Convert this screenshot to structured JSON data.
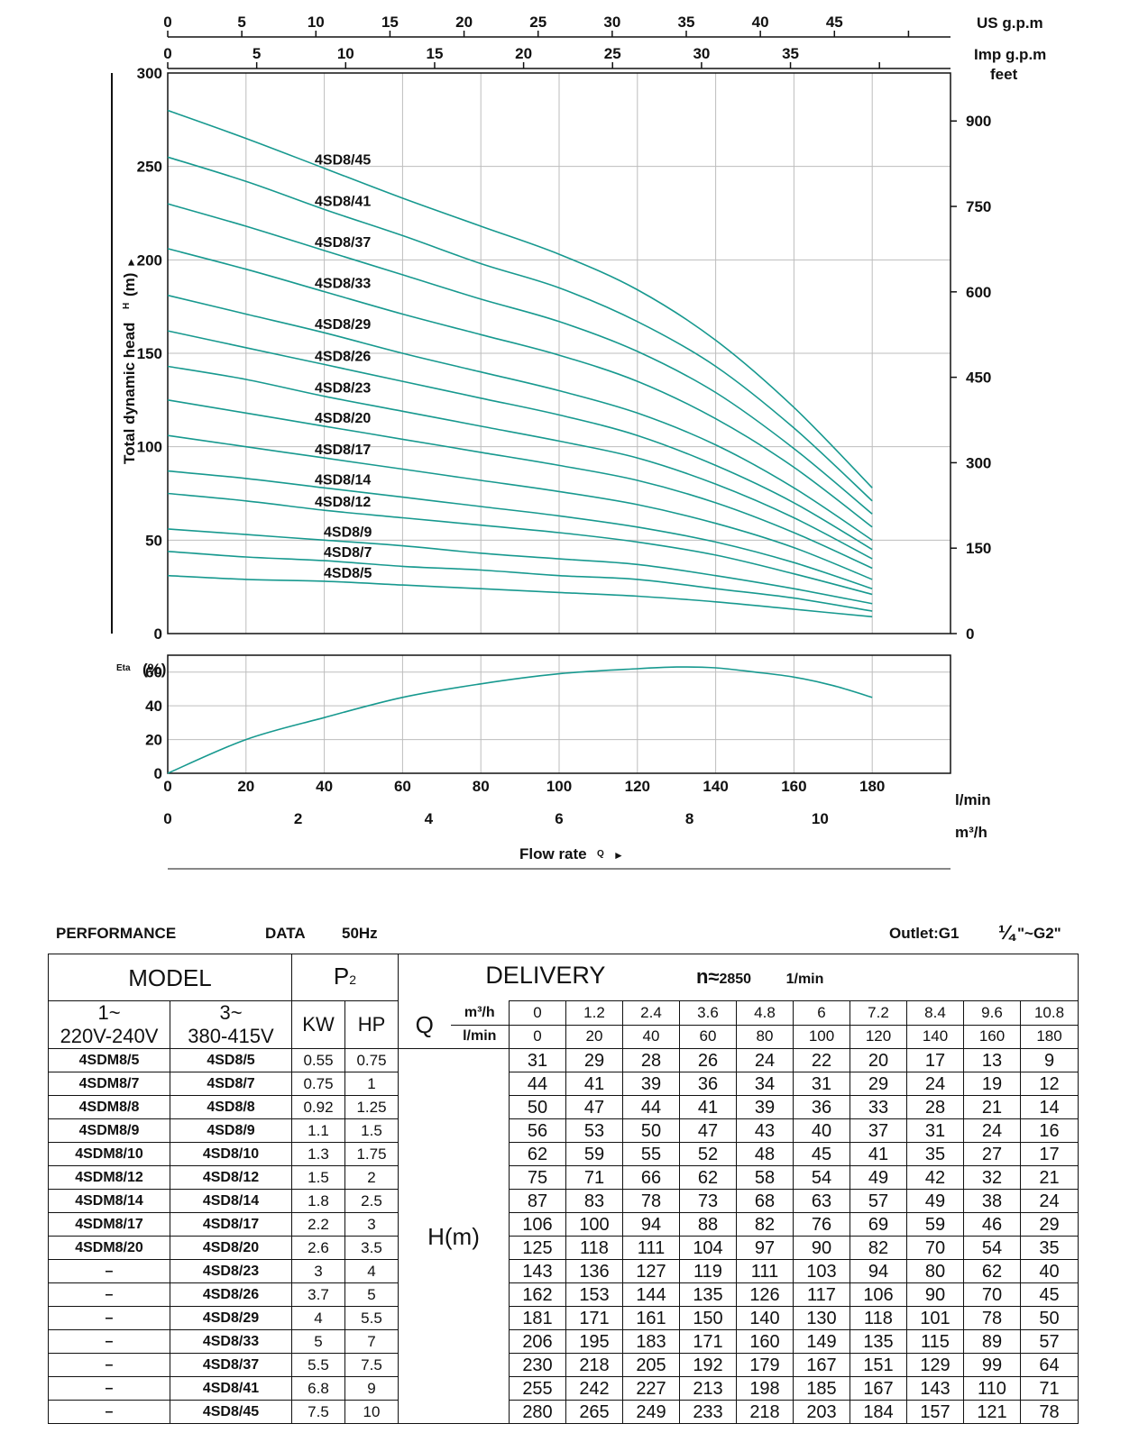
{
  "chart_data": [
    {
      "type": "line",
      "title": "",
      "xlabel": "Flow rate Q",
      "ylabel": "Total dynamic head H (m)",
      "x_unit": "l/min",
      "x": [
        0,
        20,
        40,
        60,
        80,
        100,
        120,
        140,
        160,
        180
      ],
      "xlim": [
        0,
        200
      ],
      "ylim": [
        0,
        300
      ],
      "y_ticks": [
        0,
        50,
        100,
        150,
        200,
        250,
        300
      ],
      "x_ticks": [
        0,
        20,
        40,
        60,
        80,
        100,
        120,
        140,
        160,
        180
      ],
      "secondary_x_m3h_ticks": [
        0,
        2,
        4,
        6,
        8,
        10
      ],
      "secondary_x_m3h_unit": "m³/h",
      "top_x_us_gpm_ticks": [
        0,
        5,
        10,
        15,
        20,
        25,
        30,
        35,
        40,
        45
      ],
      "top_x_us_gpm_unit": "US g.p.m",
      "top_x_imp_gpm_ticks": [
        0,
        5,
        10,
        15,
        20,
        25,
        30,
        35
      ],
      "top_x_imp_gpm_unit": "Imp g.p.m",
      "right_y_feet_ticks": [
        0,
        150,
        300,
        450,
        600,
        750,
        900
      ],
      "right_y_unit": "feet",
      "grid": true,
      "series": [
        {
          "name": "4SD8/45",
          "values": [
            280,
            265,
            249,
            233,
            218,
            203,
            184,
            157,
            121,
            78
          ]
        },
        {
          "name": "4SD8/41",
          "values": [
            255,
            242,
            227,
            213,
            198,
            185,
            167,
            143,
            110,
            71
          ]
        },
        {
          "name": "4SD8/37",
          "values": [
            230,
            218,
            205,
            192,
            179,
            167,
            151,
            129,
            99,
            64
          ]
        },
        {
          "name": "4SD8/33",
          "values": [
            206,
            195,
            183,
            171,
            160,
            149,
            135,
            115,
            89,
            57
          ]
        },
        {
          "name": "4SD8/29",
          "values": [
            181,
            171,
            161,
            150,
            140,
            130,
            118,
            101,
            78,
            50
          ]
        },
        {
          "name": "4SD8/26",
          "values": [
            162,
            153,
            144,
            135,
            126,
            117,
            106,
            90,
            70,
            45
          ]
        },
        {
          "name": "4SD8/23",
          "values": [
            143,
            136,
            127,
            119,
            111,
            103,
            94,
            80,
            62,
            40
          ]
        },
        {
          "name": "4SD8/20",
          "values": [
            125,
            118,
            111,
            104,
            97,
            90,
            82,
            70,
            54,
            35
          ]
        },
        {
          "name": "4SD8/17",
          "values": [
            106,
            100,
            94,
            88,
            82,
            76,
            69,
            59,
            46,
            29
          ]
        },
        {
          "name": "4SD8/14",
          "values": [
            87,
            83,
            78,
            73,
            68,
            63,
            57,
            49,
            38,
            24
          ]
        },
        {
          "name": "4SD8/12",
          "values": [
            75,
            71,
            66,
            62,
            58,
            54,
            49,
            42,
            32,
            21
          ]
        },
        {
          "name": "4SD8/9",
          "values": [
            56,
            53,
            50,
            47,
            43,
            40,
            37,
            31,
            24,
            16
          ]
        },
        {
          "name": "4SD8/7",
          "values": [
            44,
            41,
            39,
            36,
            34,
            31,
            29,
            24,
            19,
            12
          ]
        },
        {
          "name": "4SD8/5",
          "values": [
            31,
            29,
            28,
            26,
            24,
            22,
            20,
            17,
            13,
            9
          ]
        }
      ]
    },
    {
      "type": "line",
      "title": "",
      "ylabel": "Eta (%)",
      "xlabel": "Flow rate Q",
      "x": [
        0,
        20,
        40,
        60,
        80,
        100,
        120,
        130,
        140,
        150,
        160,
        170,
        180
      ],
      "xlim": [
        0,
        200
      ],
      "ylim": [
        0,
        70
      ],
      "y_ticks": [
        0,
        20,
        40,
        60
      ],
      "grid": true,
      "series": [
        {
          "name": "Eta",
          "values": [
            0,
            20,
            33,
            45,
            53,
            59,
            62,
            63,
            62.5,
            60,
            57,
            52,
            45
          ]
        }
      ]
    }
  ],
  "axes_text": {
    "us_gpm": "US g.p.m",
    "imp_gpm": "Imp g.p.m",
    "feet": "feet",
    "ylabel": "Total dynamic head",
    "ylabel_h": "H",
    "ylabel_m": "(m)",
    "eta": "Eta",
    "eta_pct": "(%)",
    "lmin": "l/min",
    "m3h": "m³/h",
    "flow_rate": "Flow rate",
    "flow_q": "Q"
  },
  "header": {
    "performance": "PERFORMANCE",
    "data": "DATA",
    "hz": "50Hz",
    "outlet": "Outlet:G1",
    "outlet_fraction": "¼",
    "outlet_tail": "\"~G2\""
  },
  "table": {
    "model": "MODEL",
    "p2": "P",
    "p2_sub": "2",
    "delivery": "DELIVERY",
    "n_label": "n≈",
    "n_value": "2850",
    "n_unit": "1/min",
    "single_phase_1": "1~",
    "single_phase_2": "220V-240V",
    "three_phase_1": "3~",
    "three_phase_2": "380-415V",
    "kw": "KW",
    "hp": "HP",
    "q": "Q",
    "q_m3h_unit": "m³/h",
    "q_lmin_unit": "l/min",
    "hm": "H(m)",
    "q_m3h": [
      "0",
      "1.2",
      "2.4",
      "3.6",
      "4.8",
      "6",
      "7.2",
      "8.4",
      "9.6",
      "10.8"
    ],
    "q_lmin": [
      "0",
      "20",
      "40",
      "60",
      "80",
      "100",
      "120",
      "140",
      "160",
      "180"
    ],
    "rows": [
      {
        "single": "4SDM8/5",
        "three": "4SD8/5",
        "kw": "0.55",
        "hp": "0.75",
        "h": [
          "31",
          "29",
          "28",
          "26",
          "24",
          "22",
          "20",
          "17",
          "13",
          "9"
        ]
      },
      {
        "single": "4SDM8/7",
        "three": "4SD8/7",
        "kw": "0.75",
        "hp": "1",
        "h": [
          "44",
          "41",
          "39",
          "36",
          "34",
          "31",
          "29",
          "24",
          "19",
          "12"
        ]
      },
      {
        "single": "4SDM8/8",
        "three": "4SD8/8",
        "kw": "0.92",
        "hp": "1.25",
        "h": [
          "50",
          "47",
          "44",
          "41",
          "39",
          "36",
          "33",
          "28",
          "21",
          "14"
        ]
      },
      {
        "single": "4SDM8/9",
        "three": "4SD8/9",
        "kw": "1.1",
        "hp": "1.5",
        "h": [
          "56",
          "53",
          "50",
          "47",
          "43",
          "40",
          "37",
          "31",
          "24",
          "16"
        ]
      },
      {
        "single": "4SDM8/10",
        "three": "4SD8/10",
        "kw": "1.3",
        "hp": "1.75",
        "h": [
          "62",
          "59",
          "55",
          "52",
          "48",
          "45",
          "41",
          "35",
          "27",
          "17"
        ]
      },
      {
        "single": "4SDM8/12",
        "three": "4SD8/12",
        "kw": "1.5",
        "hp": "2",
        "h": [
          "75",
          "71",
          "66",
          "62",
          "58",
          "54",
          "49",
          "42",
          "32",
          "21"
        ]
      },
      {
        "single": "4SDM8/14",
        "three": "4SD8/14",
        "kw": "1.8",
        "hp": "2.5",
        "h": [
          "87",
          "83",
          "78",
          "73",
          "68",
          "63",
          "57",
          "49",
          "38",
          "24"
        ]
      },
      {
        "single": "4SDM8/17",
        "three": "4SD8/17",
        "kw": "2.2",
        "hp": "3",
        "h": [
          "106",
          "100",
          "94",
          "88",
          "82",
          "76",
          "69",
          "59",
          "46",
          "29"
        ]
      },
      {
        "single": "4SDM8/20",
        "three": "4SD8/20",
        "kw": "2.6",
        "hp": "3.5",
        "h": [
          "125",
          "118",
          "111",
          "104",
          "97",
          "90",
          "82",
          "70",
          "54",
          "35"
        ]
      },
      {
        "single": "–",
        "three": "4SD8/23",
        "kw": "3",
        "hp": "4",
        "h": [
          "143",
          "136",
          "127",
          "119",
          "111",
          "103",
          "94",
          "80",
          "62",
          "40"
        ]
      },
      {
        "single": "–",
        "three": "4SD8/26",
        "kw": "3.7",
        "hp": "5",
        "h": [
          "162",
          "153",
          "144",
          "135",
          "126",
          "117",
          "106",
          "90",
          "70",
          "45"
        ]
      },
      {
        "single": "–",
        "three": "4SD8/29",
        "kw": "4",
        "hp": "5.5",
        "h": [
          "181",
          "171",
          "161",
          "150",
          "140",
          "130",
          "118",
          "101",
          "78",
          "50"
        ]
      },
      {
        "single": "–",
        "three": "4SD8/33",
        "kw": "5",
        "hp": "7",
        "h": [
          "206",
          "195",
          "183",
          "171",
          "160",
          "149",
          "135",
          "115",
          "89",
          "57"
        ]
      },
      {
        "single": "–",
        "three": "4SD8/37",
        "kw": "5.5",
        "hp": "7.5",
        "h": [
          "230",
          "218",
          "205",
          "192",
          "179",
          "167",
          "151",
          "129",
          "99",
          "64"
        ]
      },
      {
        "single": "–",
        "three": "4SD8/41",
        "kw": "6.8",
        "hp": "9",
        "h": [
          "255",
          "242",
          "227",
          "213",
          "198",
          "185",
          "167",
          "143",
          "110",
          "71"
        ]
      },
      {
        "single": "–",
        "three": "4SD8/45",
        "kw": "7.5",
        "hp": "10",
        "h": [
          "280",
          "265",
          "249",
          "233",
          "218",
          "203",
          "184",
          "157",
          "121",
          "78"
        ]
      }
    ]
  }
}
